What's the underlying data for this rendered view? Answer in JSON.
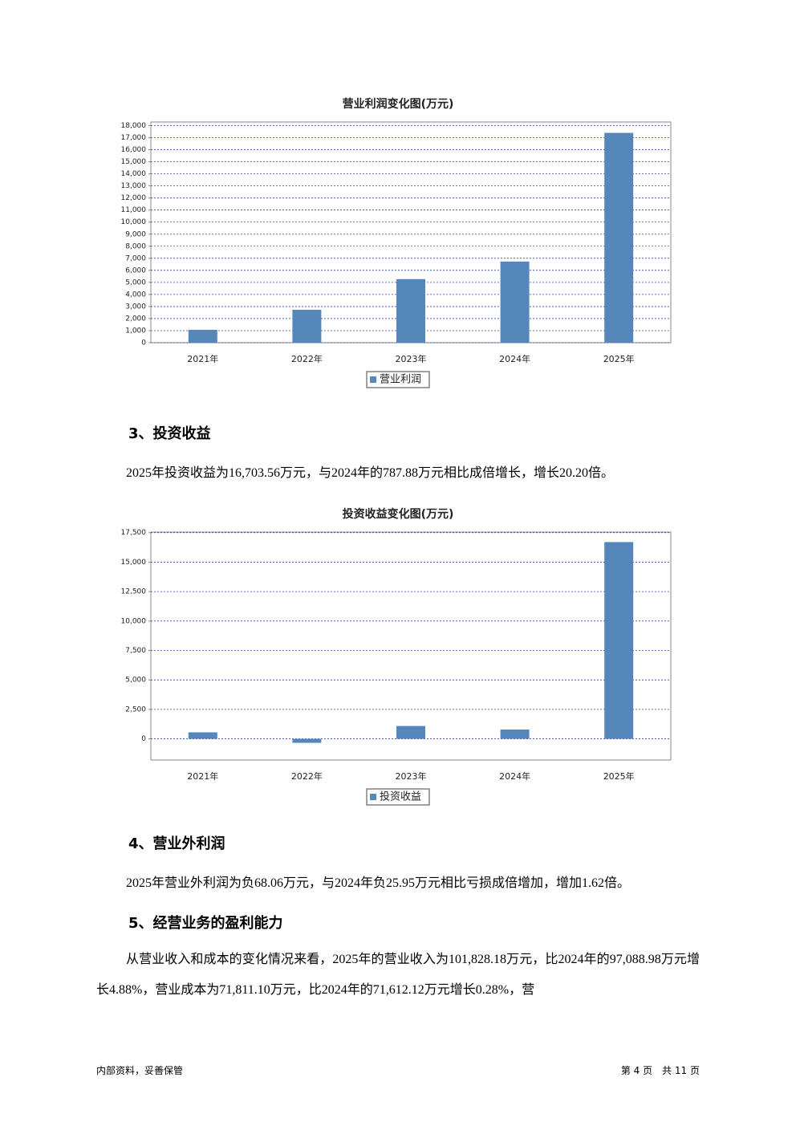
{
  "chart_data": [
    {
      "type": "bar",
      "title": "营业利润变化图(万元)",
      "categories": [
        "2021年",
        "2022年",
        "2023年",
        "2024年",
        "2025年"
      ],
      "series": [
        {
          "name": "营业利润",
          "color": "#5587bb",
          "values": [
            1070,
            2730,
            5270,
            6730,
            17400
          ]
        }
      ],
      "ylim": [
        0,
        18300
      ],
      "yticks": [
        0,
        {
          "value": 1000,
          "label": "1,000"
        },
        {
          "value": 2000,
          "label": "2,000"
        },
        {
          "value": 3000,
          "label": "3,000"
        },
        {
          "value": 4000,
          "label": "4,000"
        },
        {
          "value": 5000,
          "label": "5,000"
        },
        {
          "value": 6000,
          "label": "6,000"
        },
        {
          "value": 7000,
          "label": "7,000"
        },
        {
          "value": 8000,
          "label": "8,000"
        },
        {
          "value": 9000,
          "label": "9,000"
        },
        {
          "value": 10000,
          "label": "10,000"
        },
        {
          "value": 11000,
          "label": "11,000"
        },
        {
          "value": 12000,
          "label": "12,000"
        },
        {
          "value": 13000,
          "label": "13,000"
        },
        {
          "value": 14000,
          "label": "14,000"
        },
        {
          "value": 15000,
          "label": "15,000"
        },
        {
          "value": 16000,
          "label": "16,000"
        },
        {
          "value": 17000,
          "label": "17,000"
        },
        {
          "value": 18000,
          "label": "18,000"
        }
      ],
      "grid": true
    },
    {
      "type": "bar",
      "title": "投资收益变化图(万元)",
      "categories": [
        "2021年",
        "2022年",
        "2023年",
        "2024年",
        "2025年"
      ],
      "series": [
        {
          "name": "投资收益",
          "color": "#5587bb",
          "values": [
            550,
            -340,
            1090,
            787.88,
            16703.56
          ]
        }
      ],
      "ylim": [
        -1800,
        17550
      ],
      "yticks": [
        0,
        {
          "value": 2500,
          "label": "2,500"
        },
        {
          "value": 5000,
          "label": "5,000"
        },
        {
          "value": 7500,
          "label": "7,500"
        },
        {
          "value": 10000,
          "label": "10,000"
        },
        {
          "value": 12500,
          "label": "12,500"
        },
        {
          "value": 15000,
          "label": "15,000"
        },
        {
          "value": 17500,
          "label": "17,500"
        }
      ],
      "grid": true
    }
  ],
  "sections": [
    {
      "heading": "3、投资收益",
      "text": "2025年投资收益为16,703.56万元，与2024年的787.88万元相比成倍增长，增长20.20倍。"
    },
    {
      "heading": "4、营业外利润",
      "text": "2025年营业外利润为负68.06万元，与2024年负25.95万元相比亏损成倍增加，增加1.62倍。"
    },
    {
      "heading": "5、经营业务的盈利能力",
      "text": "从营业收入和成本的变化情况来看，2025年的营业收入为101,828.18万元，比2024年的97,088.98万元增长4.88%，营业成本为71,811.10万元，比2024年的71,612.12万元增长0.28%，营"
    }
  ],
  "footer": {
    "left": "内部资料，妥善保管",
    "right": "第 4 页　共 11 页"
  }
}
